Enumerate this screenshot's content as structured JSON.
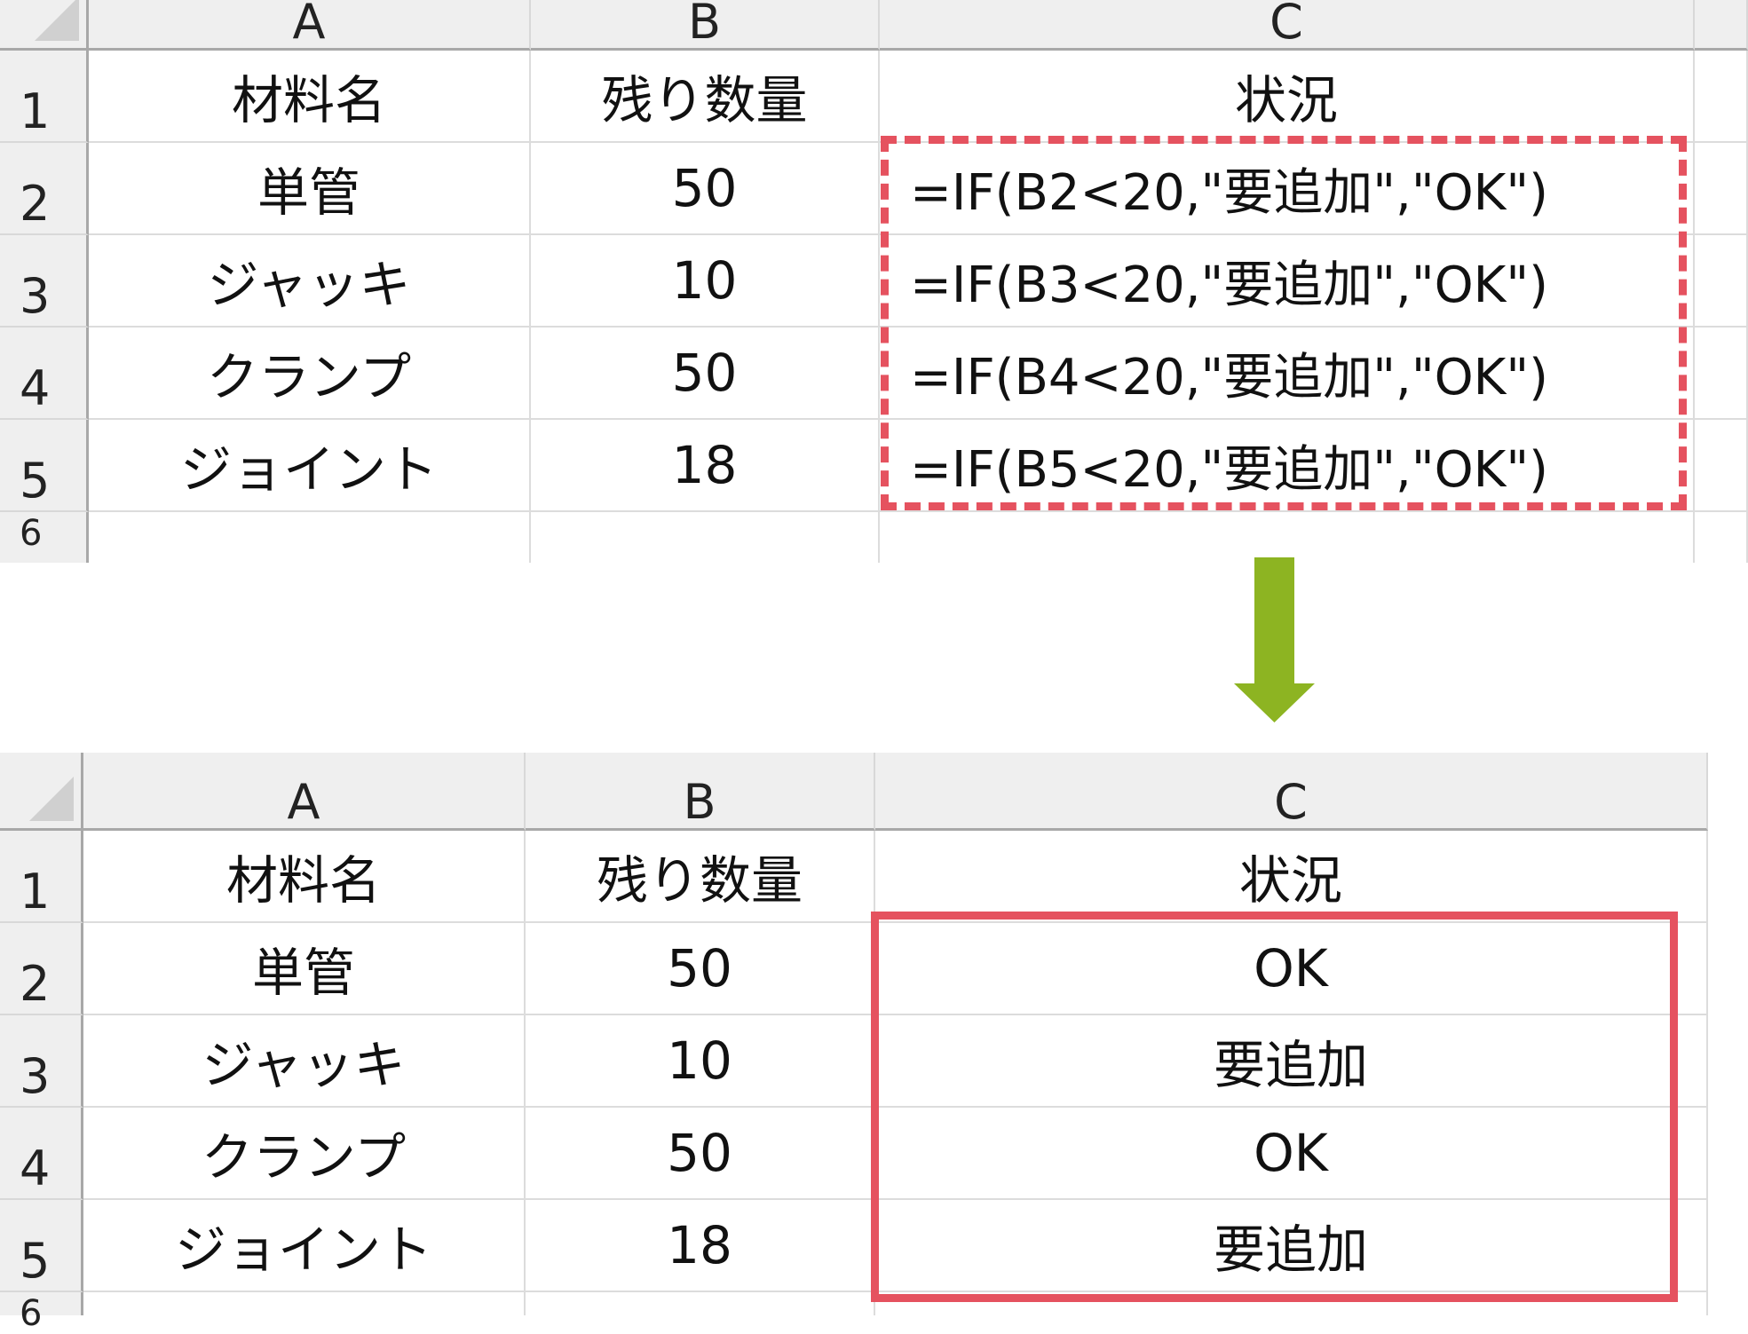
{
  "columns": [
    "A",
    "B",
    "C"
  ],
  "rows": [
    "1",
    "2",
    "3",
    "4",
    "5",
    "6"
  ],
  "before": {
    "cells": [
      [
        "材料名",
        "残り数量",
        "状況"
      ],
      [
        "単管",
        "50",
        "=IF(B2<20,\"要追加\",\"OK\")"
      ],
      [
        "ジャッキ",
        "10",
        "=IF(B3<20,\"要追加\",\"OK\")"
      ],
      [
        "クランプ",
        "50",
        "=IF(B4<20,\"要追加\",\"OK\")"
      ],
      [
        "ジョイント",
        "18",
        "=IF(B5<20,\"要追加\",\"OK\")"
      ]
    ]
  },
  "after": {
    "cells": [
      [
        "材料名",
        "残り数量",
        "状況"
      ],
      [
        "単管",
        "50",
        "OK"
      ],
      [
        "ジャッキ",
        "10",
        "要追加"
      ],
      [
        "クランプ",
        "50",
        "OK"
      ],
      [
        "ジョイント",
        "18",
        "要追加"
      ]
    ]
  },
  "colors": {
    "highlight": "#e5525f",
    "arrow": "#8db422",
    "header_bg": "#efefef"
  },
  "icons": {
    "arrow": "arrow-down-icon"
  }
}
